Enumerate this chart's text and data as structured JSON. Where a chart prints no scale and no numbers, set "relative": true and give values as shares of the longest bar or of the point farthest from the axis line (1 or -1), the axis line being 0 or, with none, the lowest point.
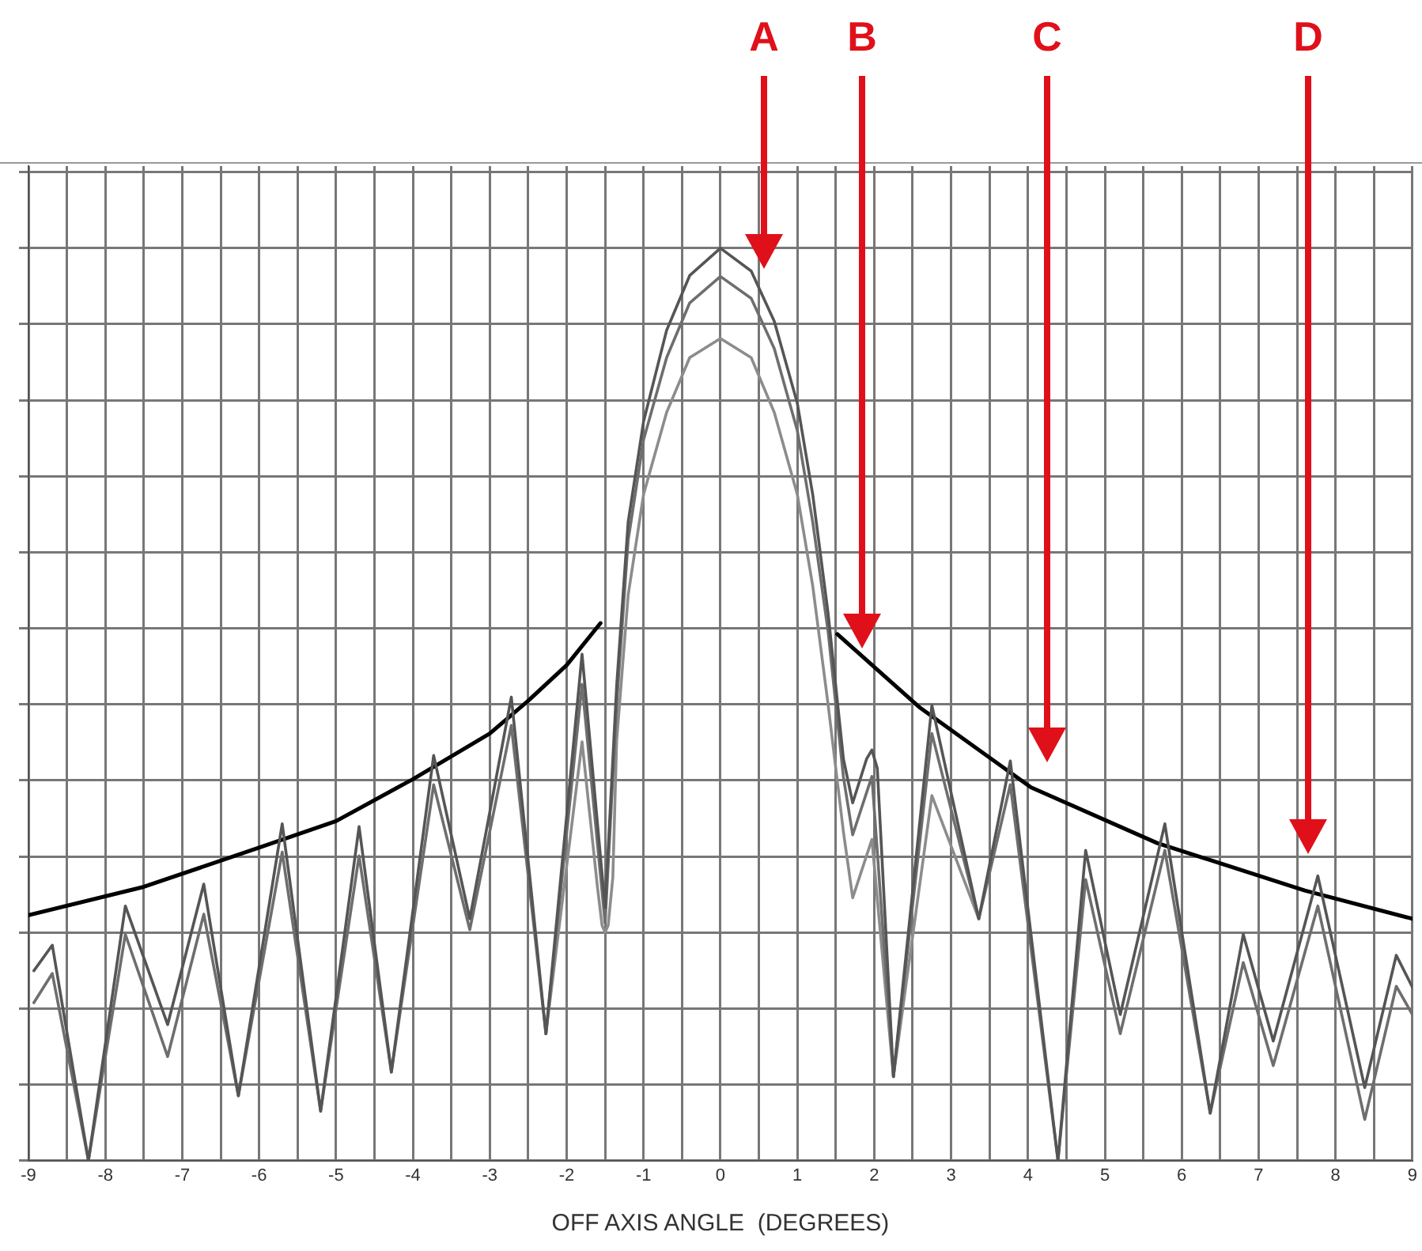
{
  "chart_data": {
    "type": "line",
    "relative": true,
    "xlabel": "OFF AXIS ANGLE  (DEGREES)",
    "xlim": [
      -9,
      9
    ],
    "xticks": [
      -9,
      {
        "value": -8.5,
        "label": null
      },
      -8,
      {
        "value": -7.5,
        "label": null
      },
      -7,
      {
        "value": -6.5,
        "label": null
      },
      -6,
      {
        "value": -5.5,
        "label": null
      },
      -5,
      {
        "value": -4.5,
        "label": null
      },
      -4,
      {
        "value": -3.5,
        "label": null
      },
      -3,
      {
        "value": -2.5,
        "label": null
      },
      -2,
      {
        "value": -1.5,
        "label": null
      },
      -1,
      {
        "value": -0.5,
        "label": null
      },
      0,
      {
        "value": 0.5,
        "label": null
      },
      1,
      {
        "value": 1.5,
        "label": null
      },
      2,
      {
        "value": 2.5,
        "label": null
      },
      3,
      {
        "value": 3.5,
        "label": null
      },
      4,
      {
        "value": 4.5,
        "label": null
      },
      5,
      {
        "value": 5.5,
        "label": null
      },
      6,
      {
        "value": 6.5,
        "label": null
      },
      7,
      {
        "value": 7.5,
        "label": null
      },
      8,
      {
        "value": 8.5,
        "label": null
      },
      9
    ],
    "grid": true,
    "legend": false,
    "tick_labels": "x",
    "marker": "none",
    "line_style": "solid",
    "series": [
      {
        "color": "#555555",
        "x": [
          -8.93,
          -8.69,
          -8.22,
          -7.74,
          -7.19,
          -6.72,
          -6.27,
          -5.7,
          -5.2,
          -4.7,
          -4.28,
          -3.73,
          -3.26,
          -2.72,
          -2.27,
          -1.8,
          -1.5,
          -1.35,
          -1.2,
          -1,
          -0.7,
          -0.4,
          0,
          0.4,
          0.7,
          1,
          1.2,
          1.4,
          1.6,
          1.72,
          1.9,
          1.97,
          2.04,
          2.25,
          2.75,
          3.36,
          3.77,
          4.39,
          4.75,
          5.2,
          5.78,
          6.37,
          6.8,
          7.19,
          7.77,
          8.38,
          8.79,
          9
        ],
        "values": [
          0.208,
          0.236,
          0,
          0.279,
          0.149,
          0.303,
          0.071,
          0.369,
          0.054,
          0.366,
          0.097,
          0.444,
          0.265,
          0.508,
          0.139,
          0.555,
          0.277,
          0.52,
          0.7,
          0.81,
          0.91,
          0.97,
          1,
          0.975,
          0.92,
          0.83,
          0.73,
          0.6,
          0.44,
          0.392,
          0.44,
          0.45,
          0.43,
          0.092,
          0.499,
          0.265,
          0.438,
          0,
          0.34,
          0.16,
          0.369,
          0.052,
          0.248,
          0.131,
          0.312,
          0.08,
          0.225,
          0.19
        ]
      },
      {
        "color": "#6e6e6e",
        "x": [
          -8.93,
          -8.69,
          -8.22,
          -7.74,
          -7.19,
          -6.72,
          -6.27,
          -5.7,
          -5.2,
          -4.7,
          -4.28,
          -3.73,
          -3.26,
          -2.72,
          -2.27,
          -1.8,
          -1.5,
          -1.35,
          -1.2,
          -1,
          -0.7,
          -0.4,
          0,
          0.4,
          0.7,
          1,
          1.2,
          1.4,
          1.6,
          1.72,
          1.97,
          2.25,
          2.75,
          3.36,
          3.77,
          4.39,
          4.75,
          5.2,
          5.78,
          6.37,
          6.8,
          7.19,
          7.77,
          8.38,
          8.79,
          9
        ],
        "values": [
          0.173,
          0.205,
          0,
          0.248,
          0.114,
          0.27,
          0.071,
          0.338,
          0.054,
          0.334,
          0.097,
          0.412,
          0.253,
          0.477,
          0.139,
          0.522,
          0.26,
          0.5,
          0.68,
          0.79,
          0.88,
          0.94,
          0.969,
          0.945,
          0.89,
          0.8,
          0.7,
          0.58,
          0.42,
          0.357,
          0.421,
          0.092,
          0.468,
          0.265,
          0.412,
          0,
          0.308,
          0.139,
          0.34,
          0.052,
          0.217,
          0.104,
          0.279,
          0.045,
          0.191,
          0.16
        ]
      },
      {
        "color": "#8c8c8c",
        "x": [
          -2.27,
          -1.8,
          -1.6,
          -1.54,
          -1.5,
          -1.46,
          -1.4,
          -1.35,
          -1.2,
          -1,
          -0.7,
          -0.4,
          0,
          0.4,
          0.7,
          1,
          1.2,
          1.4,
          1.6,
          1.72,
          1.97,
          2.25,
          2.75,
          3.36
        ],
        "values": [
          0.139,
          0.459,
          0.3,
          0.258,
          0.25,
          0.258,
          0.31,
          0.46,
          0.62,
          0.73,
          0.82,
          0.88,
          0.901,
          0.88,
          0.82,
          0.73,
          0.63,
          0.5,
          0.36,
          0.288,
          0.352,
          0.092,
          0.4,
          0.265
        ]
      },
      {
        "color": "#000000",
        "x": [
          -9,
          -7.5,
          -6,
          -5,
          -4,
          -3,
          -2.5,
          -2,
          -1.56
        ],
        "values": [
          0.269,
          0.3,
          0.343,
          0.372,
          0.418,
          0.468,
          0.504,
          0.543,
          0.589
        ]
      },
      {
        "color": "#000000",
        "x": [
          1.52,
          2.6,
          4.04,
          5.68,
          7.6,
          9
        ],
        "values": [
          0.577,
          0.496,
          0.409,
          0.348,
          0.296,
          0.265
        ]
      }
    ],
    "annotations": [
      "A",
      "B",
      "C",
      "D"
    ]
  }
}
